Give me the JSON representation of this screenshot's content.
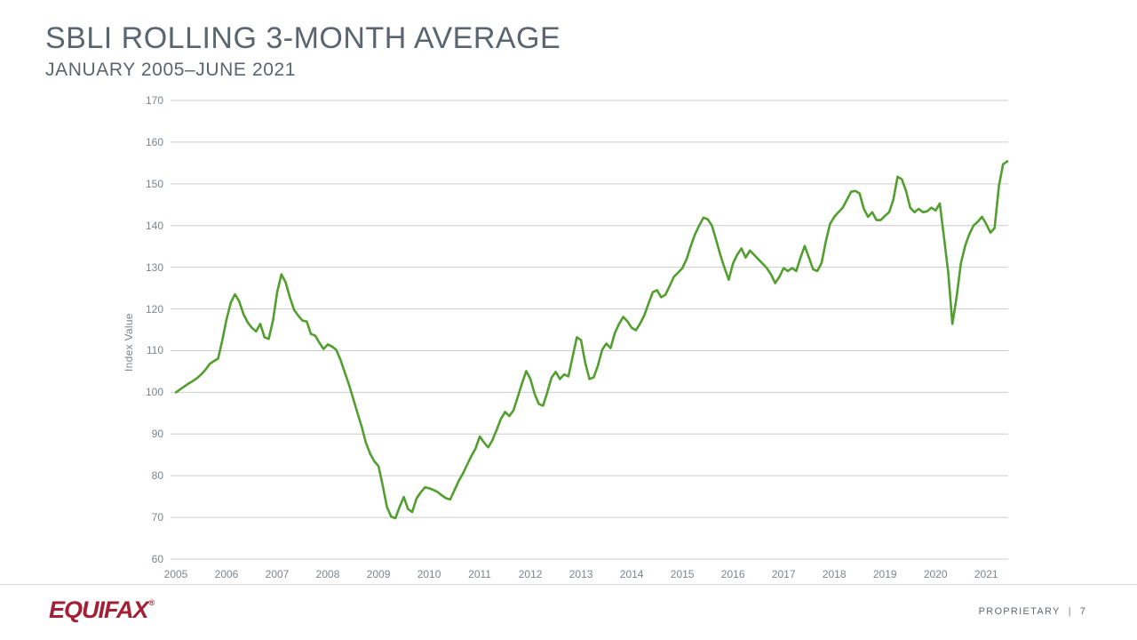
{
  "slide": {
    "title": "SBLI ROLLING 3-MONTH AVERAGE",
    "subtitle": "JANUARY 2005–JUNE 2021",
    "footer": {
      "brand": "EQUIFAX",
      "registered_mark": "®",
      "proprietary_label": "PROPRIETARY",
      "separator": "|",
      "page_number": "7"
    }
  },
  "colors": {
    "title_text": "#5a656f",
    "axis_text": "#7b858e",
    "gridline": "#c9cdd1",
    "line": "#529e2f",
    "brand_red": "#a32036",
    "footer_text": "#5f6973",
    "divider": "#d9dcde"
  },
  "chart_data": {
    "type": "line",
    "title": "SBLI Rolling 3-Month Average",
    "subtitle_range": "January 2005 – June 2021",
    "xlabel": "",
    "ylabel": "Index Value",
    "ylim": [
      60,
      170
    ],
    "yticks": [
      60,
      70,
      80,
      90,
      100,
      110,
      120,
      130,
      140,
      150,
      160,
      170
    ],
    "xticks": [
      "2005",
      "2006",
      "2007",
      "2008",
      "2009",
      "2010",
      "2011",
      "2012",
      "2013",
      "2014",
      "2015",
      "2016",
      "2017",
      "2018",
      "2019",
      "2020",
      "2021"
    ],
    "grid": "horizontal-only",
    "legend": "none",
    "x_frequency": "monthly",
    "x_start": "2005-01",
    "x_end": "2021-06",
    "series": [
      {
        "name": "SBLI rolling 3-month average",
        "color": "#529e2f",
        "monthly_values": [
          100.0,
          100.7,
          101.4,
          102.1,
          102.7,
          103.4,
          104.3,
          105.4,
          106.8,
          107.5,
          108.1,
          112.5,
          117.5,
          121.5,
          123.5,
          121.8,
          118.8,
          116.8,
          115.5,
          114.6,
          116.4,
          113.2,
          112.8,
          117.2,
          124.0,
          128.3,
          126.4,
          122.8,
          119.8,
          118.4,
          117.2,
          117.0,
          114.0,
          113.6,
          111.9,
          110.4,
          111.5,
          111.0,
          110.2,
          107.8,
          104.8,
          101.9,
          98.5,
          95.1,
          91.8,
          88.0,
          85.3,
          83.5,
          82.3,
          77.7,
          72.5,
          70.2,
          69.8,
          72.5,
          74.9,
          72.0,
          71.3,
          74.5,
          76.0,
          77.2,
          77.0,
          76.6,
          76.1,
          75.3,
          74.6,
          74.3,
          76.5,
          78.7,
          80.5,
          82.6,
          84.7,
          86.5,
          89.4,
          88.0,
          86.8,
          88.5,
          91.0,
          93.6,
          95.3,
          94.3,
          95.7,
          98.9,
          102.1,
          105.1,
          103.2,
          99.6,
          97.2,
          96.8,
          100.0,
          103.5,
          104.9,
          103.2,
          104.3,
          103.8,
          108.5,
          113.2,
          112.5,
          107.0,
          103.2,
          103.6,
          106.4,
          110.2,
          111.7,
          110.6,
          114.2,
          116.4,
          118.1,
          117.0,
          115.5,
          114.9,
          116.5,
          118.5,
          121.3,
          124.0,
          124.5,
          122.8,
          123.4,
          125.5,
          127.7,
          128.7,
          129.8,
          131.9,
          135.1,
          137.9,
          140.0,
          141.9,
          141.5,
          140.0,
          136.6,
          133.0,
          129.8,
          127.0,
          130.9,
          133.0,
          134.5,
          132.3,
          134.0,
          133.0,
          131.9,
          130.9,
          129.8,
          128.3,
          126.2,
          127.7,
          129.8,
          129.1,
          129.8,
          129.1,
          132.3,
          135.1,
          132.3,
          129.5,
          129.1,
          131.0,
          136.2,
          140.4,
          142.1,
          143.2,
          144.3,
          146.2,
          148.1,
          148.3,
          147.7,
          144.0,
          142.1,
          143.2,
          141.3,
          141.3,
          142.3,
          143.2,
          146.2,
          151.7,
          151.1,
          148.3,
          144.3,
          143.2,
          144.0,
          143.2,
          143.4,
          144.3,
          143.6,
          145.3,
          137.2,
          128.7,
          116.4,
          123.0,
          130.9,
          135.1,
          137.9,
          140.0,
          140.9,
          142.1,
          140.4,
          138.3,
          139.4,
          149.4,
          154.7,
          155.4
        ]
      }
    ]
  }
}
